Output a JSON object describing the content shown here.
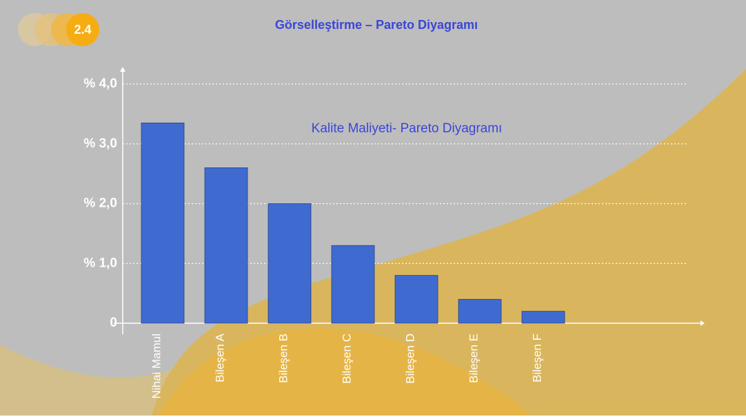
{
  "header": {
    "badge": "2.4",
    "title": "Görselleştirme – Pareto Diyagramı"
  },
  "chart_data": {
    "type": "bar",
    "title": "Kalite Maliyeti- Pareto Diyagramı",
    "categories": [
      "Nihai Mamul",
      "Bileşen A",
      "Bileşen B",
      "Bileşen C",
      "Bileşen D",
      "Bileşen E",
      "Bileşen F"
    ],
    "values": [
      3.35,
      2.6,
      2.0,
      1.3,
      0.8,
      0.4,
      0.2
    ],
    "color": "#3f6bd0",
    "ylim": [
      0,
      4.0
    ],
    "yticks": [
      0,
      {
        "value": 1.0,
        "label": "% 1,0"
      },
      {
        "value": 2.0,
        "label": "% 2,0"
      },
      {
        "value": 3.0,
        "label": "% 3,0"
      },
      {
        "value": 4.0,
        "label": "% 4,0"
      }
    ],
    "grid": true
  }
}
